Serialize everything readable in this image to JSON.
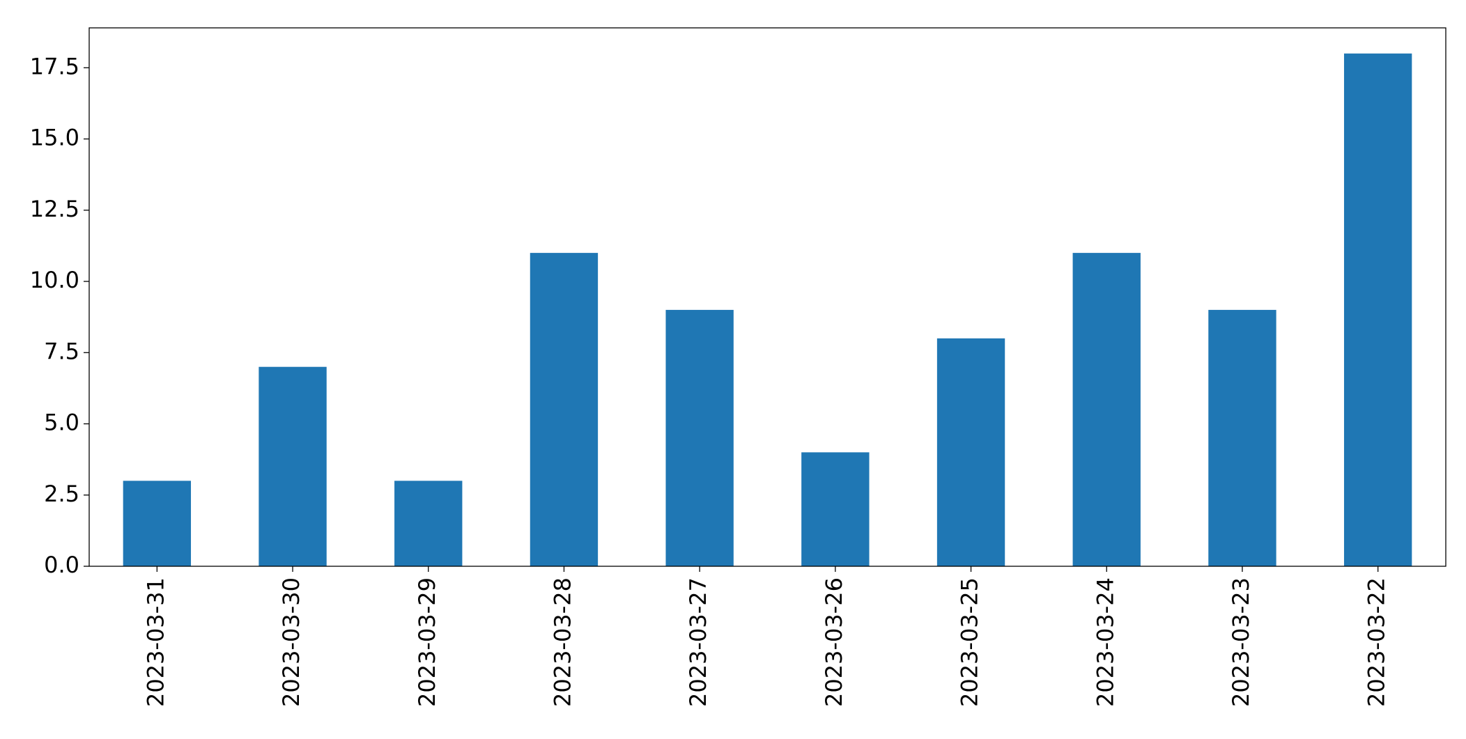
{
  "chart_data": {
    "type": "bar",
    "categories": [
      "2023-03-31",
      "2023-03-30",
      "2023-03-29",
      "2023-03-28",
      "2023-03-27",
      "2023-03-26",
      "2023-03-25",
      "2023-03-24",
      "2023-03-23",
      "2023-03-22"
    ],
    "values": [
      3,
      7,
      3,
      11,
      9,
      4,
      8,
      11,
      9,
      18
    ],
    "color": "#1f77b4",
    "ylim": [
      0,
      18.9
    ],
    "yticks": [
      {
        "value": 0,
        "label": "0.0"
      },
      2.5,
      {
        "value": 5,
        "label": "5.0"
      },
      7.5,
      {
        "value": 10,
        "label": "10.0"
      },
      12.5,
      {
        "value": 15,
        "label": "15.0"
      },
      17.5
    ],
    "grid": false
  }
}
